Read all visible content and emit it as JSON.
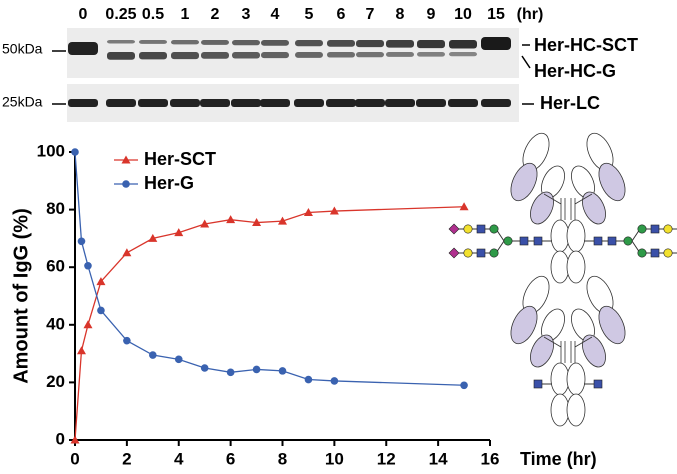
{
  "gel": {
    "lanes": [
      "0",
      "0.25",
      "0.5",
      "1",
      "2",
      "3",
      "4",
      "5",
      "6",
      "7",
      "8",
      "9",
      "10",
      "15"
    ],
    "unit": "(hr)",
    "markers": [
      "50kDa",
      "25kDa"
    ],
    "bands": [
      "Her-HC-SCT",
      "Her-HC-G",
      "Her-LC"
    ]
  },
  "chart_data": {
    "type": "line",
    "xlabel": "Time (hr)",
    "ylabel": "Amount of IgG (%)",
    "x": [
      0,
      0.25,
      0.5,
      1,
      2,
      3,
      4,
      5,
      6,
      7,
      8,
      9,
      10,
      15
    ],
    "series": [
      {
        "name": "Her-SCT",
        "color": "#d9352b",
        "marker": "triangle",
        "values": [
          0,
          31,
          40,
          55,
          65,
          70,
          72,
          75,
          76.5,
          75.5,
          76,
          79,
          79.5,
          81
        ]
      },
      {
        "name": "Her-G",
        "color": "#3a62b0",
        "marker": "circle",
        "values": [
          100,
          69,
          60.5,
          45,
          34.5,
          29.5,
          28,
          25,
          23.5,
          24.5,
          24,
          21,
          20.5,
          19
        ]
      }
    ],
    "xlim": [
      0,
      16
    ],
    "xticks": [
      0,
      2,
      4,
      6,
      8,
      10,
      12,
      14,
      16
    ],
    "ylim": [
      0,
      100
    ],
    "yticks": [
      0,
      20,
      40,
      60,
      80,
      100
    ]
  }
}
